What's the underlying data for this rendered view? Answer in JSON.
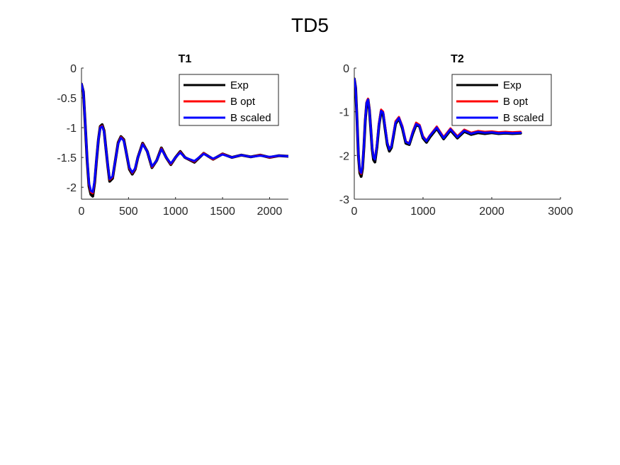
{
  "figure_title": "TD5",
  "chart_data": [
    {
      "type": "line",
      "title": "T1",
      "xlabel": "",
      "ylabel": "",
      "xlim": [
        0,
        2200
      ],
      "ylim": [
        -2.2,
        0
      ],
      "xticks": [
        0,
        500,
        1000,
        1500,
        2000
      ],
      "yticks": [
        0,
        -0.5,
        -1,
        -1.5,
        -2
      ],
      "xtick_labels": [
        "0",
        "500",
        "1000",
        "1500",
        "2000"
      ],
      "ytick_labels": [
        "0",
        "-0.5",
        "-1",
        "-1.5",
        "-2"
      ],
      "grid": false,
      "legend": "top-right",
      "series": [
        {
          "name": "Exp",
          "color": "#000000"
        },
        {
          "name": "B opt",
          "color": "#ff0000"
        },
        {
          "name": "B scaled",
          "color": "#0000ff"
        }
      ],
      "x": [
        0,
        20,
        40,
        60,
        80,
        100,
        120,
        140,
        160,
        180,
        200,
        220,
        240,
        260,
        280,
        300,
        330,
        360,
        390,
        420,
        450,
        480,
        510,
        540,
        570,
        600,
        650,
        700,
        750,
        800,
        850,
        900,
        950,
        1000,
        1050,
        1100,
        1200,
        1300,
        1400,
        1500,
        1600,
        1700,
        1800,
        1900,
        2000,
        2100,
        2200
      ],
      "values": {
        "Exp": [
          -0.27,
          -0.4,
          -0.95,
          -1.55,
          -1.98,
          -2.12,
          -2.15,
          -1.92,
          -1.55,
          -1.2,
          -0.98,
          -0.95,
          -1.05,
          -1.35,
          -1.65,
          -1.9,
          -1.85,
          -1.55,
          -1.25,
          -1.15,
          -1.2,
          -1.45,
          -1.7,
          -1.78,
          -1.7,
          -1.5,
          -1.26,
          -1.4,
          -1.67,
          -1.55,
          -1.34,
          -1.5,
          -1.62,
          -1.5,
          -1.4,
          -1.5,
          -1.58,
          -1.43,
          -1.53,
          -1.44,
          -1.5,
          -1.46,
          -1.49,
          -1.46,
          -1.5,
          -1.47,
          -1.48
        ],
        "B opt": [
          -0.27,
          -0.4,
          -0.94,
          -1.53,
          -1.95,
          -2.08,
          -2.1,
          -1.9,
          -1.54,
          -1.2,
          -0.99,
          -0.97,
          -1.06,
          -1.35,
          -1.64,
          -1.87,
          -1.83,
          -1.55,
          -1.26,
          -1.16,
          -1.21,
          -1.45,
          -1.68,
          -1.76,
          -1.69,
          -1.5,
          -1.27,
          -1.4,
          -1.66,
          -1.55,
          -1.35,
          -1.5,
          -1.61,
          -1.5,
          -1.41,
          -1.5,
          -1.57,
          -1.43,
          -1.53,
          -1.44,
          -1.5,
          -1.46,
          -1.49,
          -1.46,
          -1.5,
          -1.47,
          -1.48
        ],
        "B scaled": [
          -0.27,
          -0.4,
          -0.93,
          -1.52,
          -1.93,
          -2.06,
          -2.08,
          -1.88,
          -1.53,
          -1.2,
          -1.0,
          -0.98,
          -1.07,
          -1.35,
          -1.63,
          -1.86,
          -1.82,
          -1.55,
          -1.27,
          -1.17,
          -1.22,
          -1.45,
          -1.67,
          -1.75,
          -1.68,
          -1.5,
          -1.28,
          -1.4,
          -1.65,
          -1.55,
          -1.36,
          -1.5,
          -1.6,
          -1.5,
          -1.42,
          -1.5,
          -1.56,
          -1.44,
          -1.52,
          -1.45,
          -1.5,
          -1.46,
          -1.49,
          -1.47,
          -1.49,
          -1.47,
          -1.48
        ]
      }
    },
    {
      "type": "line",
      "title": "T2",
      "xlabel": "",
      "ylabel": "",
      "xlim": [
        0,
        3000
      ],
      "ylim": [
        -3,
        0
      ],
      "xticks": [
        0,
        1000,
        2000,
        3000
      ],
      "yticks": [
        0,
        -1,
        -2,
        -3
      ],
      "xtick_labels": [
        "0",
        "1000",
        "2000",
        "3000"
      ],
      "ytick_labels": [
        "0",
        "-1",
        "-2",
        "-3"
      ],
      "grid": false,
      "legend": "top-right",
      "series": [
        {
          "name": "Exp",
          "color": "#000000"
        },
        {
          "name": "B opt",
          "color": "#ff0000"
        },
        {
          "name": "B scaled",
          "color": "#0000ff"
        }
      ],
      "x": [
        0,
        20,
        40,
        60,
        80,
        100,
        120,
        140,
        160,
        180,
        200,
        220,
        240,
        260,
        280,
        300,
        330,
        360,
        390,
        420,
        450,
        480,
        510,
        540,
        570,
        600,
        650,
        700,
        750,
        800,
        850,
        900,
        950,
        1000,
        1050,
        1100,
        1200,
        1300,
        1400,
        1500,
        1600,
        1700,
        1800,
        1900,
        2000,
        2100,
        2200,
        2300,
        2420
      ],
      "values": {
        "Exp": [
          -0.25,
          -0.45,
          -1.2,
          -2.0,
          -2.4,
          -2.48,
          -2.3,
          -1.8,
          -1.2,
          -0.8,
          -0.72,
          -0.95,
          -1.4,
          -1.85,
          -2.1,
          -2.15,
          -1.8,
          -1.3,
          -1.0,
          -1.05,
          -1.4,
          -1.75,
          -1.9,
          -1.82,
          -1.55,
          -1.28,
          -1.15,
          -1.38,
          -1.72,
          -1.75,
          -1.5,
          -1.3,
          -1.33,
          -1.6,
          -1.7,
          -1.58,
          -1.38,
          -1.62,
          -1.42,
          -1.6,
          -1.45,
          -1.52,
          -1.48,
          -1.5,
          -1.48,
          -1.5,
          -1.49,
          -1.5,
          -1.49
        ],
        "B opt": [
          -0.25,
          -0.45,
          -1.18,
          -1.97,
          -2.36,
          -2.42,
          -2.25,
          -1.76,
          -1.16,
          -0.77,
          -0.7,
          -0.92,
          -1.37,
          -1.8,
          -2.04,
          -2.08,
          -1.74,
          -1.25,
          -0.95,
          -1.0,
          -1.35,
          -1.7,
          -1.85,
          -1.78,
          -1.5,
          -1.22,
          -1.12,
          -1.33,
          -1.68,
          -1.72,
          -1.45,
          -1.25,
          -1.3,
          -1.56,
          -1.66,
          -1.54,
          -1.34,
          -1.58,
          -1.38,
          -1.56,
          -1.41,
          -1.48,
          -1.44,
          -1.46,
          -1.45,
          -1.47,
          -1.46,
          -1.47,
          -1.46
        ],
        "B scaled": [
          -0.25,
          -0.45,
          -1.17,
          -1.95,
          -2.34,
          -2.4,
          -2.24,
          -1.76,
          -1.17,
          -0.79,
          -0.72,
          -0.94,
          -1.38,
          -1.81,
          -2.05,
          -2.09,
          -1.76,
          -1.28,
          -0.98,
          -1.02,
          -1.37,
          -1.71,
          -1.86,
          -1.79,
          -1.52,
          -1.25,
          -1.14,
          -1.35,
          -1.69,
          -1.73,
          -1.47,
          -1.28,
          -1.32,
          -1.58,
          -1.67,
          -1.55,
          -1.36,
          -1.6,
          -1.4,
          -1.58,
          -1.43,
          -1.5,
          -1.46,
          -1.48,
          -1.47,
          -1.49,
          -1.48,
          -1.49,
          -1.48
        ]
      }
    }
  ]
}
